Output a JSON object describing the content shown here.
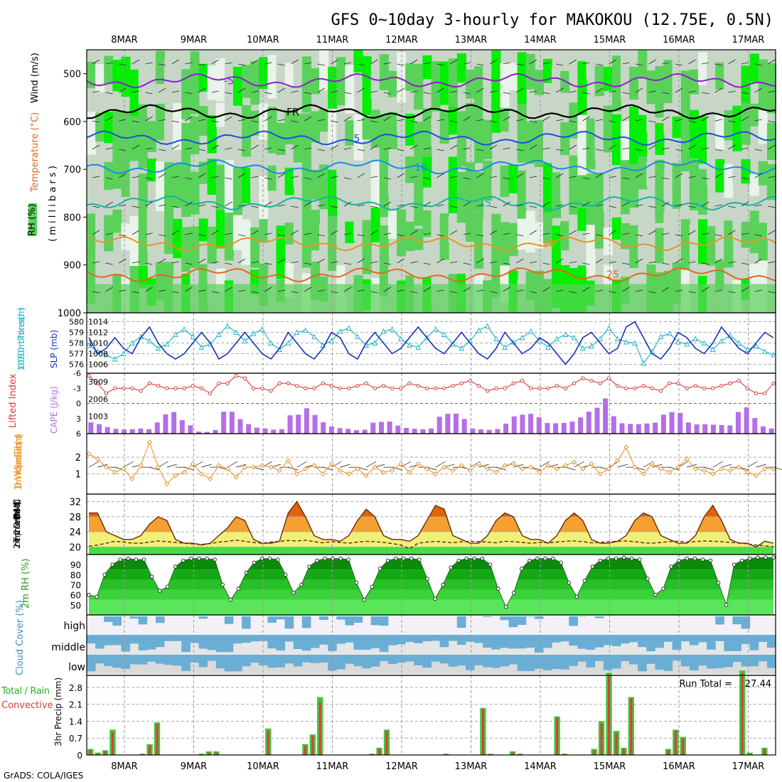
{
  "title": "GFS 0~10day 3-hourly for MAKOKOU (12.75E, 0.5N)",
  "footer": "GrADS: COLA/IGES",
  "dates": [
    "8MAR",
    "9MAR",
    "10MAR",
    "11MAR",
    "12MAR",
    "13MAR",
    "14MAR",
    "15MAR",
    "16MAR",
    "17MAR"
  ],
  "colors": {
    "rh_light": "#c8d6c8",
    "rh_mid": "#5ad25a",
    "rh_bright": "#00f000",
    "pale": "#eaf3ea"
  },
  "chart_data": [
    {
      "type": "heatmap",
      "id": "upper_air",
      "ylabel_parts": [
        "RH (%)",
        "Temperature (°C)",
        "Wind (m/s)"
      ],
      "ylabel_unit": "( m i l l i b a r s )",
      "y_ticks": [
        500,
        600,
        700,
        800,
        900,
        1000
      ],
      "ylim": [
        450,
        1000
      ],
      "contours": [
        {
          "label": "-5",
          "level_mb": 515,
          "color": "#8a22c8"
        },
        {
          "label": "FR",
          "level_mb": 580,
          "color": "#000000"
        },
        {
          "label": "5",
          "level_mb": 635,
          "color": "#1a50d8"
        },
        {
          "label": "10",
          "level_mb": 695,
          "color": "#1a8ce0"
        },
        {
          "label": "15",
          "level_mb": 770,
          "color": "#14b4a0"
        },
        {
          "label": "20",
          "level_mb": 855,
          "color": "#e89428"
        },
        {
          "label": "25",
          "level_mb": 920,
          "color": "#e06a1e"
        }
      ]
    },
    {
      "type": "line",
      "id": "thickness_slp",
      "ylabel_left": "1000-500mb Thickness (dm)",
      "ylabel_right": "SLP (mb)",
      "left_ticks": [
        576,
        577,
        578,
        579,
        580
      ],
      "right_ticks": [
        1006,
        1008,
        1010,
        1012,
        1014
      ],
      "series": [
        {
          "name": "SLP (mb)",
          "color": "#1432b4",
          "values": [
            1011,
            1008,
            1009,
            1011,
            1009,
            1008,
            1011,
            1013,
            1010,
            1008,
            1007,
            1008,
            1010,
            1012,
            1010,
            1007,
            1008,
            1010,
            1012,
            1010,
            1008,
            1007,
            1009,
            1012,
            1010,
            1008,
            1007,
            1009,
            1012,
            1011,
            1008,
            1007,
            1010,
            1012,
            1010,
            1008,
            1009,
            1011,
            1013,
            1011,
            1009,
            1008,
            1010,
            1012,
            1010,
            1008,
            1007,
            1009,
            1012,
            1010,
            1008,
            1009,
            1011,
            1010,
            1008,
            1006,
            1008,
            1011,
            1012,
            1010,
            1008,
            1009,
            1013,
            1014,
            1011,
            1008,
            1007,
            1009,
            1012,
            1011,
            1009,
            1008,
            1010,
            1013,
            1011,
            1009,
            1008,
            1010,
            1012,
            1011
          ]
        },
        {
          "name": "Thickness (dm)",
          "color": "#28b4c8",
          "values": [
            577.8,
            577.2,
            576.9,
            576.5,
            577.0,
            578.0,
            578.6,
            578.2,
            577.5,
            577.9,
            578.8,
            579.3,
            578.6,
            577.6,
            577.9,
            578.8,
            579.6,
            579.0,
            578.2,
            578.9,
            579.3,
            578.0,
            577.4,
            578.0,
            579.0,
            579.2,
            578.6,
            577.8,
            578.2,
            579.1,
            579.4,
            578.6,
            577.8,
            578.0,
            579.1,
            579.3,
            578.4,
            577.8,
            577.6,
            578.5,
            579.3,
            578.8,
            577.9,
            577.5,
            578.2,
            579.2,
            579.6,
            578.4,
            577.6,
            578.1,
            578.5,
            579.1,
            578.2,
            577.6,
            578.4,
            578.8,
            578.5,
            577.5,
            577.7,
            578.4,
            579.4,
            578.4,
            578.1,
            578.0,
            576.1,
            577.2,
            578.6,
            578.9,
            578.1,
            577.9,
            578.4,
            578.0,
            577.4,
            578.2,
            578.7,
            578.0,
            577.4,
            577.7,
            577.2,
            576.9
          ]
        }
      ]
    },
    {
      "type": "bar",
      "id": "li_cape",
      "ylabel_left": "Lifted Index",
      "ylabel_right": "CAPE (J/kg)",
      "li_ticks": [
        -6,
        -3,
        0,
        3,
        6
      ],
      "li_tick_labels": [
        "-6",
        "-3",
        "0",
        "3",
        "6"
      ],
      "cape_ticks": [
        1003,
        2006,
        3009
      ],
      "li_series": {
        "name": "Lifted Index",
        "color": "#dc3c3c",
        "values": [
          -5.5,
          -4,
          -2,
          -3,
          -3,
          -3,
          -2.5,
          -4,
          -3.5,
          -3,
          -3,
          -3,
          -3.5,
          -3,
          -2,
          -4,
          -4,
          -5.5,
          -5,
          -3,
          -3,
          -2.5,
          -4,
          -4,
          -3.5,
          -3,
          -3,
          -4,
          -3.5,
          -3,
          -3,
          -3.5,
          -4,
          -3,
          -3.5,
          -3,
          -3,
          -4,
          -3.5,
          -3,
          -3,
          -3,
          -3.5,
          -4,
          -4.5,
          -3.5,
          -2.5,
          -3,
          -3,
          -4,
          -4.5,
          -3,
          -3,
          -3,
          -3.5,
          -3,
          -4,
          -5,
          -4.5,
          -4,
          -5,
          -3.5,
          -3,
          -3,
          -3.5,
          -3,
          -2.5,
          -4,
          -4,
          -3,
          -3.5,
          -3,
          -3,
          -3.5,
          -4,
          -4.5,
          -3,
          -2,
          -2,
          -4
        ]
      },
      "cape_series": {
        "name": "CAPE",
        "color": "#b46ee6",
        "values": [
          650,
          550,
          380,
          280,
          240,
          260,
          300,
          260,
          650,
          1120,
          1250,
          780,
          480,
          120,
          100,
          210,
          1270,
          1270,
          840,
          550,
          350,
          300,
          230,
          260,
          1060,
          1100,
          1470,
          1080,
          660,
          420,
          320,
          280,
          200,
          230,
          640,
          680,
          700,
          470,
          330,
          280,
          250,
          300,
          980,
          1150,
          1160,
          850,
          300,
          250,
          220,
          270,
          580,
          1000,
          1100,
          1150,
          950,
          620,
          600,
          620,
          700,
          940,
          1270,
          1500,
          2040,
          1010,
          600,
          560,
          550,
          590,
          640,
          1100,
          1250,
          1200,
          650,
          540,
          550,
          520,
          500,
          480,
          1260,
          1520,
          900,
          420,
          300
        ]
      }
    },
    {
      "type": "line",
      "id": "wind10m",
      "ylabel_left": "10m Wind Speed & Barbs (m/s)",
      "y_ticks": [
        1,
        2
      ],
      "series": [
        {
          "name": "10m Wind Speed",
          "color": "#e8962c",
          "values": [
            2.2,
            1.9,
            1.4,
            1.1,
            1.3,
            0.7,
            1.5,
            2.9,
            1.4,
            0.4,
            0.9,
            1.1,
            1.6,
            1.0,
            0.7,
            1.5,
            1.3,
            0.8,
            1.4,
            1.4,
            1.5,
            1.4,
            1.2,
            1.8,
            1.0,
            1.3,
            1.5,
            1.0,
            1.6,
            1.2,
            1.0,
            1.3,
            0.9,
            1.4,
            1.1,
            1.2,
            1.6,
            1.1,
            1.6,
            1.3,
            1.0,
            1.4,
            1.2,
            1.5,
            1.2,
            1.6,
            1.3,
            1.1,
            1.5,
            1.6,
            1.3,
            1.4,
            1.1,
            1.5,
            1.3,
            1.5,
            1.7,
            1.3,
            1.6,
            1.0,
            1.3,
            1.8,
            2.6,
            1.4,
            1.0,
            1.6,
            1.3,
            1.1,
            1.4,
            1.9,
            1.3,
            1.2,
            1.0,
            1.3,
            1.2,
            1.4,
            1.1,
            0.9,
            1.3,
            1.3
          ]
        }
      ]
    },
    {
      "type": "area",
      "id": "temp2m",
      "ylabel_left": "2m Temp 2m DewPt (6hr Min/Max) (°C)",
      "y_ticks": [
        20,
        24,
        28,
        32
      ],
      "ylim": [
        18,
        34
      ],
      "temp": [
        29,
        29,
        24,
        23,
        22,
        22,
        23,
        26,
        28,
        27,
        22,
        21,
        21,
        20.5,
        21,
        23,
        25,
        28,
        27,
        22,
        21,
        21,
        21.5,
        29,
        32,
        28,
        23,
        22,
        22,
        21.5,
        23,
        27,
        30,
        28,
        23,
        22,
        22,
        21.5,
        23,
        27,
        31,
        30,
        23,
        22,
        21,
        21,
        23,
        27,
        29,
        28,
        23,
        22,
        22,
        21,
        23,
        27,
        29,
        27,
        22,
        21,
        21,
        21.5,
        23,
        27,
        29,
        28,
        23,
        22,
        21,
        21,
        23,
        28,
        31,
        27,
        22,
        21,
        21,
        20,
        21.5,
        21
      ],
      "dewpt": [
        20.2,
        20.5,
        21,
        21.5,
        21.3,
        21,
        21,
        21.3,
        21.6,
        21.4,
        21.2,
        21,
        20.8,
        20.7,
        20.9,
        21.3,
        21.5,
        21.8,
        21.5,
        21.2,
        21,
        21.3,
        21.5,
        21.7,
        21.6,
        21.8,
        21.4,
        21.1,
        21.4,
        21.2,
        21,
        21.3,
        21.5,
        21.4,
        21.2,
        20.9,
        20.5,
        19.5,
        21,
        21.3,
        21.5,
        21.3,
        21.1,
        21.4,
        21.5,
        21.4,
        21.3,
        21.1,
        21.5,
        21.4,
        21.2,
        21,
        21.2,
        21.1,
        21.3,
        21.5,
        21.6,
        21.4,
        21.1,
        21.2,
        21.4,
        21.5,
        21.6,
        21.4,
        21.1,
        21,
        21.2,
        21.4,
        21.5,
        21.3,
        21.4,
        21.6,
        21.5,
        21.4,
        21.2,
        21.1,
        20.8,
        20.5,
        20.3,
        20.1
      ]
    },
    {
      "type": "area",
      "id": "rh2m",
      "ylabel_left": "2m RH (%)",
      "y_ticks": [
        50,
        60,
        70,
        80,
        90
      ],
      "ylim": [
        40,
        100
      ],
      "values": [
        60,
        58,
        80,
        90,
        95,
        96,
        95,
        95,
        78,
        64,
        68,
        88,
        94,
        96,
        96,
        96,
        95,
        70,
        55,
        66,
        82,
        92,
        96,
        96,
        95,
        80,
        62,
        70,
        88,
        94,
        96,
        96,
        96,
        95,
        72,
        55,
        68,
        86,
        94,
        96,
        96,
        96,
        95,
        76,
        56,
        70,
        87,
        94,
        96,
        96,
        96,
        90,
        66,
        48,
        62,
        86,
        94,
        96,
        96,
        96,
        92,
        72,
        58,
        74,
        88,
        94,
        96,
        96,
        97,
        96,
        95,
        76,
        60,
        66,
        88,
        94,
        96,
        96,
        95,
        94,
        72,
        50,
        90,
        94,
        96,
        97,
        97,
        97
      ]
    },
    {
      "type": "heatmap",
      "id": "cloud",
      "ylabel_left": "Cloud Cover (%)",
      "labels": [
        "high",
        "middle",
        "low"
      ]
    },
    {
      "type": "bar",
      "id": "precip",
      "ylabel_left": "Total / Rain Convective",
      "ylabel_right": "3hr Precip (mm)",
      "run_total_label": "Run Total =",
      "run_total": "27.44",
      "y_ticks": [
        0,
        0.7,
        1.4,
        2.1,
        2.8
      ],
      "y_tick_labels": [
        "0",
        "0.7",
        "1.4",
        "2.1",
        "2.8"
      ],
      "ylim": [
        0,
        3.3
      ],
      "total": [
        0.25,
        0.1,
        0.2,
        1.05,
        0,
        0,
        0,
        0.05,
        0.45,
        1.35,
        0,
        0,
        0,
        0,
        0,
        0.05,
        0.15,
        0.15,
        0,
        0,
        0,
        0,
        0,
        0,
        1.1,
        0,
        0,
        0,
        0,
        0.45,
        0.85,
        2.4,
        0,
        0,
        0,
        0,
        0,
        0,
        0.05,
        0.3,
        1.05,
        0,
        0,
        0,
        0,
        0,
        0,
        0,
        0.05,
        0,
        0,
        0,
        0,
        1.95,
        0.05,
        0,
        0,
        0.15,
        0.05,
        0,
        0,
        0,
        0,
        1.6,
        0.05,
        0,
        0,
        0,
        0.25,
        1.4,
        3.4,
        1.0,
        0.3,
        2.4,
        0,
        0,
        0,
        0,
        0.25,
        1.05,
        0.75,
        0,
        0,
        0,
        0,
        0,
        0,
        0,
        3.5,
        0.1,
        0,
        0.3,
        0
      ],
      "conv": [
        0.2,
        0.05,
        0.15,
        0.95,
        0,
        0,
        0,
        0.05,
        0.4,
        1.3,
        0,
        0,
        0,
        0,
        0,
        0.05,
        0.1,
        0.1,
        0,
        0,
        0,
        0,
        0,
        0,
        1.0,
        0,
        0,
        0,
        0,
        0.4,
        0.8,
        2.2,
        0,
        0,
        0,
        0,
        0,
        0,
        0.05,
        0.25,
        1.0,
        0,
        0,
        0,
        0,
        0,
        0,
        0,
        0.05,
        0,
        0,
        0,
        0,
        1.9,
        0.05,
        0,
        0,
        0.1,
        0.05,
        0,
        0,
        0,
        0,
        1.55,
        0.05,
        0,
        0,
        0,
        0.2,
        1.3,
        3.3,
        0.9,
        0.25,
        2.35,
        0,
        0,
        0,
        0,
        0.2,
        1.0,
        0.7,
        0,
        0,
        0,
        0,
        0,
        0,
        0,
        3.4,
        0.05,
        0,
        0.25,
        0
      ]
    }
  ]
}
